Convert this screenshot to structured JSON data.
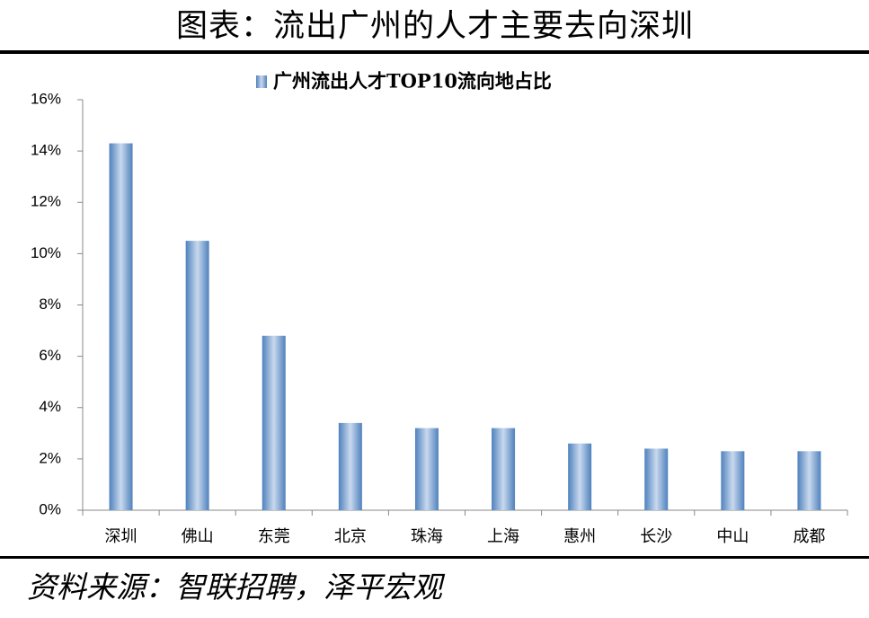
{
  "chart_data": {
    "type": "bar",
    "title": "图表：流出广州的人才主要去向深圳",
    "source": "资料来源：智联招聘，泽平宏观",
    "categories": [
      "深圳",
      "佛山",
      "东莞",
      "北京",
      "珠海",
      "上海",
      "惠州",
      "长沙",
      "中山",
      "成都"
    ],
    "series": [
      {
        "name": "广州流出人才TOP10流向地占比",
        "color": "#4f81bd",
        "values": [
          14.3,
          10.5,
          6.8,
          3.4,
          3.2,
          3.2,
          2.6,
          2.4,
          2.3,
          2.3
        ]
      }
    ],
    "ylim": [
      0,
      16
    ],
    "yticks": [
      {
        "value": 0,
        "label": "0%"
      },
      {
        "value": 2,
        "label": "2%"
      },
      {
        "value": 4,
        "label": "4%"
      },
      {
        "value": 6,
        "label": "6%"
      },
      {
        "value": 8,
        "label": "8%"
      },
      {
        "value": 10,
        "label": "10%"
      },
      {
        "value": 12,
        "label": "12%"
      },
      {
        "value": 14,
        "label": "14%"
      },
      {
        "value": 16,
        "label": "16%"
      }
    ],
    "legend": "top"
  }
}
